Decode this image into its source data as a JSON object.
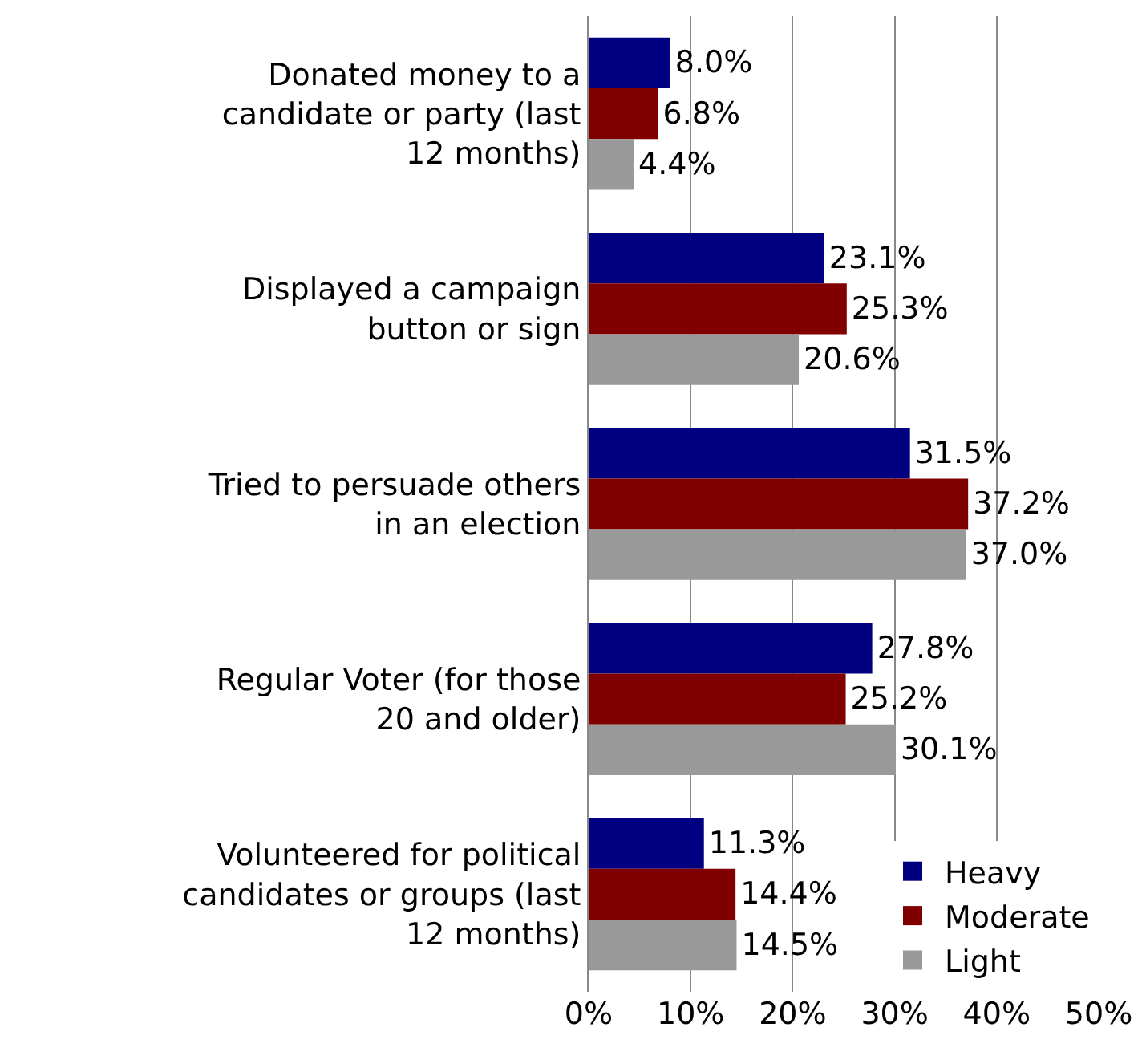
{
  "chart_data": {
    "type": "bar",
    "orientation": "horizontal",
    "categories": [
      "Donated money to a candidate or party (last 12 months)",
      "Displayed a campaign button or sign",
      "Tried to persuade others in an election",
      "Regular Voter (for those 20 and older)",
      "Volunteered for political candidates or groups (last 12 months)"
    ],
    "series": [
      {
        "name": "Heavy",
        "color": "#000080",
        "values": [
          8.0,
          23.1,
          31.5,
          27.8,
          11.3
        ],
        "value_labels": [
          "8.0%",
          "23.1%",
          "31.5%",
          "27.8%",
          "11.3%"
        ]
      },
      {
        "name": "Moderate",
        "color": "#800000",
        "values": [
          6.8,
          25.3,
          37.2,
          25.2,
          14.4
        ],
        "value_labels": [
          "6.8%",
          "25.3%",
          "37.2%",
          "25.2%",
          "14.4%"
        ]
      },
      {
        "name": "Light",
        "color": "#999999",
        "values": [
          4.4,
          20.6,
          37.0,
          30.1,
          14.5
        ],
        "value_labels": [
          "4.4%",
          "20.6%",
          "37.0%",
          "30.1%",
          "14.5%"
        ]
      }
    ],
    "xlim": [
      0,
      50
    ],
    "xticks": [
      {
        "value": 0,
        "label": "0%"
      },
      {
        "value": 10,
        "label": "10%"
      },
      {
        "value": 20,
        "label": "20%"
      },
      {
        "value": 30,
        "label": "30%"
      },
      {
        "value": 40,
        "label": "40%"
      },
      {
        "value": 50,
        "label": "50%"
      }
    ],
    "grid": "x",
    "legend": "bottom right"
  }
}
